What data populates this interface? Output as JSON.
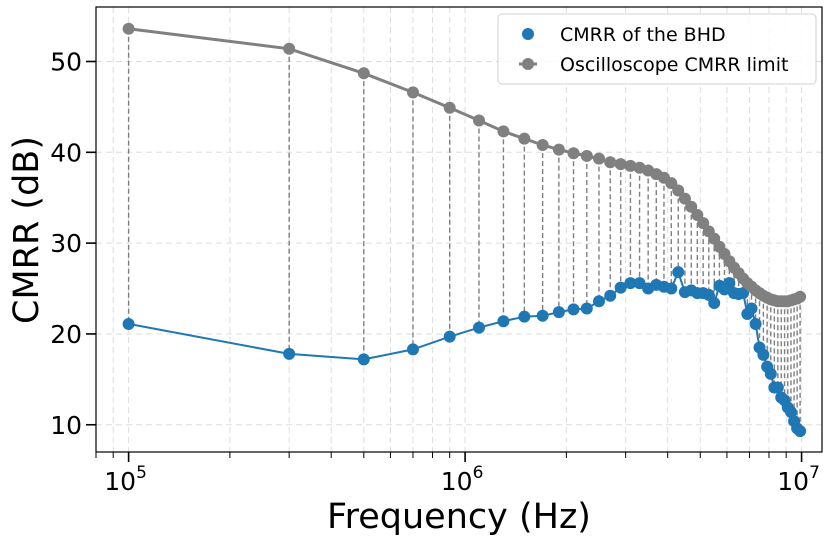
{
  "chart_data": {
    "type": "scatter",
    "xscale": "log",
    "xlabel": "Frequency (Hz)",
    "ylabel": "CMRR (dB)",
    "xlim": [
      80000,
      11500000
    ],
    "ylim": [
      7,
      56
    ],
    "grid": true,
    "legend_position": "top-right",
    "x_ticks": [
      {
        "value": 100000,
        "base": "10",
        "exp": "5"
      },
      {
        "value": 1000000,
        "base": "10",
        "exp": "6"
      },
      {
        "value": 10000000,
        "base": "10",
        "exp": "7"
      }
    ],
    "y_ticks": [
      {
        "value": 10,
        "label": "10"
      },
      {
        "value": 20,
        "label": "20"
      },
      {
        "value": 30,
        "label": "30"
      },
      {
        "value": 40,
        "label": "40"
      },
      {
        "value": 50,
        "label": "50"
      }
    ],
    "series": [
      {
        "name": "CMRR of the BHD",
        "color": "#1f77b4",
        "x": [
          100000,
          300000,
          500000,
          700000,
          900000,
          1100000,
          1300000,
          1500000,
          1700000,
          1900000,
          2100000,
          2300000,
          2500000,
          2700000,
          2900000,
          3100000,
          3300000,
          3500000,
          3700000,
          3900000,
          4100000,
          4300000,
          4500000,
          4700000,
          4900000,
          5100000,
          5300000,
          5500000,
          5700000,
          5900000,
          6100000,
          6300000,
          6500000,
          6700000,
          6900000,
          7100000,
          7300000,
          7500000,
          7700000,
          7900000,
          8100000,
          8300000,
          8500000,
          8700000,
          8900000,
          9100000,
          9300000,
          9500000,
          9700000,
          9900000
        ],
        "values": [
          21.1,
          17.8,
          17.2,
          18.3,
          19.7,
          20.7,
          21.4,
          21.9,
          22.0,
          22.4,
          22.7,
          22.8,
          23.6,
          24.2,
          25.1,
          25.6,
          25.6,
          25.0,
          25.4,
          25.2,
          25.0,
          26.8,
          24.6,
          24.8,
          24.5,
          24.5,
          24.3,
          23.4,
          25.3,
          24.9,
          25.6,
          24.5,
          24.4,
          24.5,
          22.2,
          22.8,
          21.1,
          18.5,
          17.7,
          16.4,
          15.6,
          14.1,
          14.1,
          13.0,
          12.7,
          11.9,
          11.4,
          10.4,
          9.6,
          9.3
        ]
      },
      {
        "name": "Oscilloscope CMRR limit",
        "color": "#808080",
        "x": [
          100000,
          300000,
          500000,
          700000,
          900000,
          1100000,
          1300000,
          1500000,
          1700000,
          1900000,
          2100000,
          2300000,
          2500000,
          2700000,
          2900000,
          3100000,
          3300000,
          3500000,
          3700000,
          3900000,
          4100000,
          4300000,
          4500000,
          4700000,
          4900000,
          5100000,
          5300000,
          5500000,
          5700000,
          5900000,
          6100000,
          6300000,
          6500000,
          6700000,
          6900000,
          7100000,
          7300000,
          7500000,
          7700000,
          7900000,
          8100000,
          8300000,
          8500000,
          8700000,
          8900000,
          9100000,
          9300000,
          9500000,
          9700000,
          9900000
        ],
        "values": [
          53.6,
          51.4,
          48.7,
          46.6,
          44.9,
          43.5,
          42.3,
          41.5,
          40.8,
          40.3,
          39.9,
          39.6,
          39.3,
          38.9,
          38.7,
          38.5,
          38.3,
          38.0,
          37.6,
          37.2,
          36.6,
          35.8,
          34.9,
          34.0,
          33.1,
          32.2,
          31.3,
          30.5,
          29.6,
          28.8,
          28.0,
          27.3,
          26.7,
          26.1,
          25.6,
          25.2,
          24.8,
          24.5,
          24.2,
          24.0,
          23.8,
          23.7,
          23.6,
          23.6,
          23.6,
          23.6,
          23.7,
          23.8,
          23.9,
          24.1
        ]
      }
    ]
  }
}
